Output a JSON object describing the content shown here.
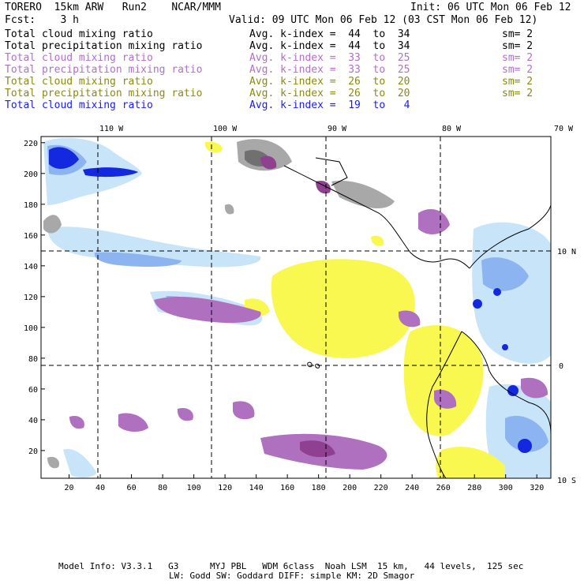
{
  "header": {
    "model": "TORERO  15km ARW   Run2    NCAR/MMM",
    "init": "Init: 06 UTC Mon 06 Feb 12",
    "fcst": "Fcst:    3 h",
    "valid": "Valid: 09 UTC Mon 06 Feb 12 (03 CST Mon 06 Feb 12)"
  },
  "legend": [
    {
      "field": "Total cloud mixing ratio",
      "index": "Avg. k-index =  44  to  34",
      "sm": "sm= 2",
      "color": "#000000"
    },
    {
      "field": "Total precipitation mixing ratio",
      "index": "Avg. k-index =  44  to  34",
      "sm": "sm= 2",
      "color": "#000000"
    },
    {
      "field": "Total cloud mixing ratio",
      "index": "Avg. k-index =  33  to  25",
      "sm": "sm= 2",
      "color": "#b070c8"
    },
    {
      "field": "Total precipitation mixing ratio",
      "index": "Avg. k-index =  33  to  25",
      "sm": "sm= 2",
      "color": "#b070c8"
    },
    {
      "field": "Total cloud mixing ratio",
      "index": "Avg. k-index =  26  to  20",
      "sm": "sm= 2",
      "color": "#8a8a10"
    },
    {
      "field": "Total precipitation mixing ratio",
      "index": "Avg. k-index =  26  to  20",
      "sm": "sm= 2",
      "color": "#8a8a10"
    },
    {
      "field": "Total cloud mixing ratio",
      "index": "Avg. k-index =  19  to   4",
      "sm": "",
      "color": "#1c1cf0"
    }
  ],
  "colors": {
    "gray": "#a8a8a8",
    "dark_gray": "#707070",
    "purple": "#b070c0",
    "dark_purple": "#904090",
    "yellow": "#f8f850",
    "light_blue": "#c8e4f8",
    "mid_blue": "#8cb4f0",
    "deep_blue": "#1428e0"
  },
  "axes": {
    "lon_labels": [
      "110 W",
      "100 W",
      "90 W",
      "80 W",
      "70 W"
    ],
    "lat_labels": [
      "10 N",
      "0",
      "10 S"
    ],
    "x_ticks": [
      "20",
      "40",
      "60",
      "80",
      "100",
      "120",
      "140",
      "160",
      "180",
      "200",
      "220",
      "240",
      "260",
      "280",
      "300",
      "320"
    ],
    "y_ticks": [
      "20",
      "40",
      "60",
      "80",
      "100",
      "120",
      "140",
      "160",
      "180",
      "200",
      "220"
    ]
  },
  "footer": {
    "line1": "Model Info: V3.3.1   G3      MYJ PBL   WDM 6class  Noah LSM  15 km,   44 levels,  125 sec",
    "line2": "LW: Godd SW: Goddard DIFF: simple KM: 2D Smagor"
  }
}
